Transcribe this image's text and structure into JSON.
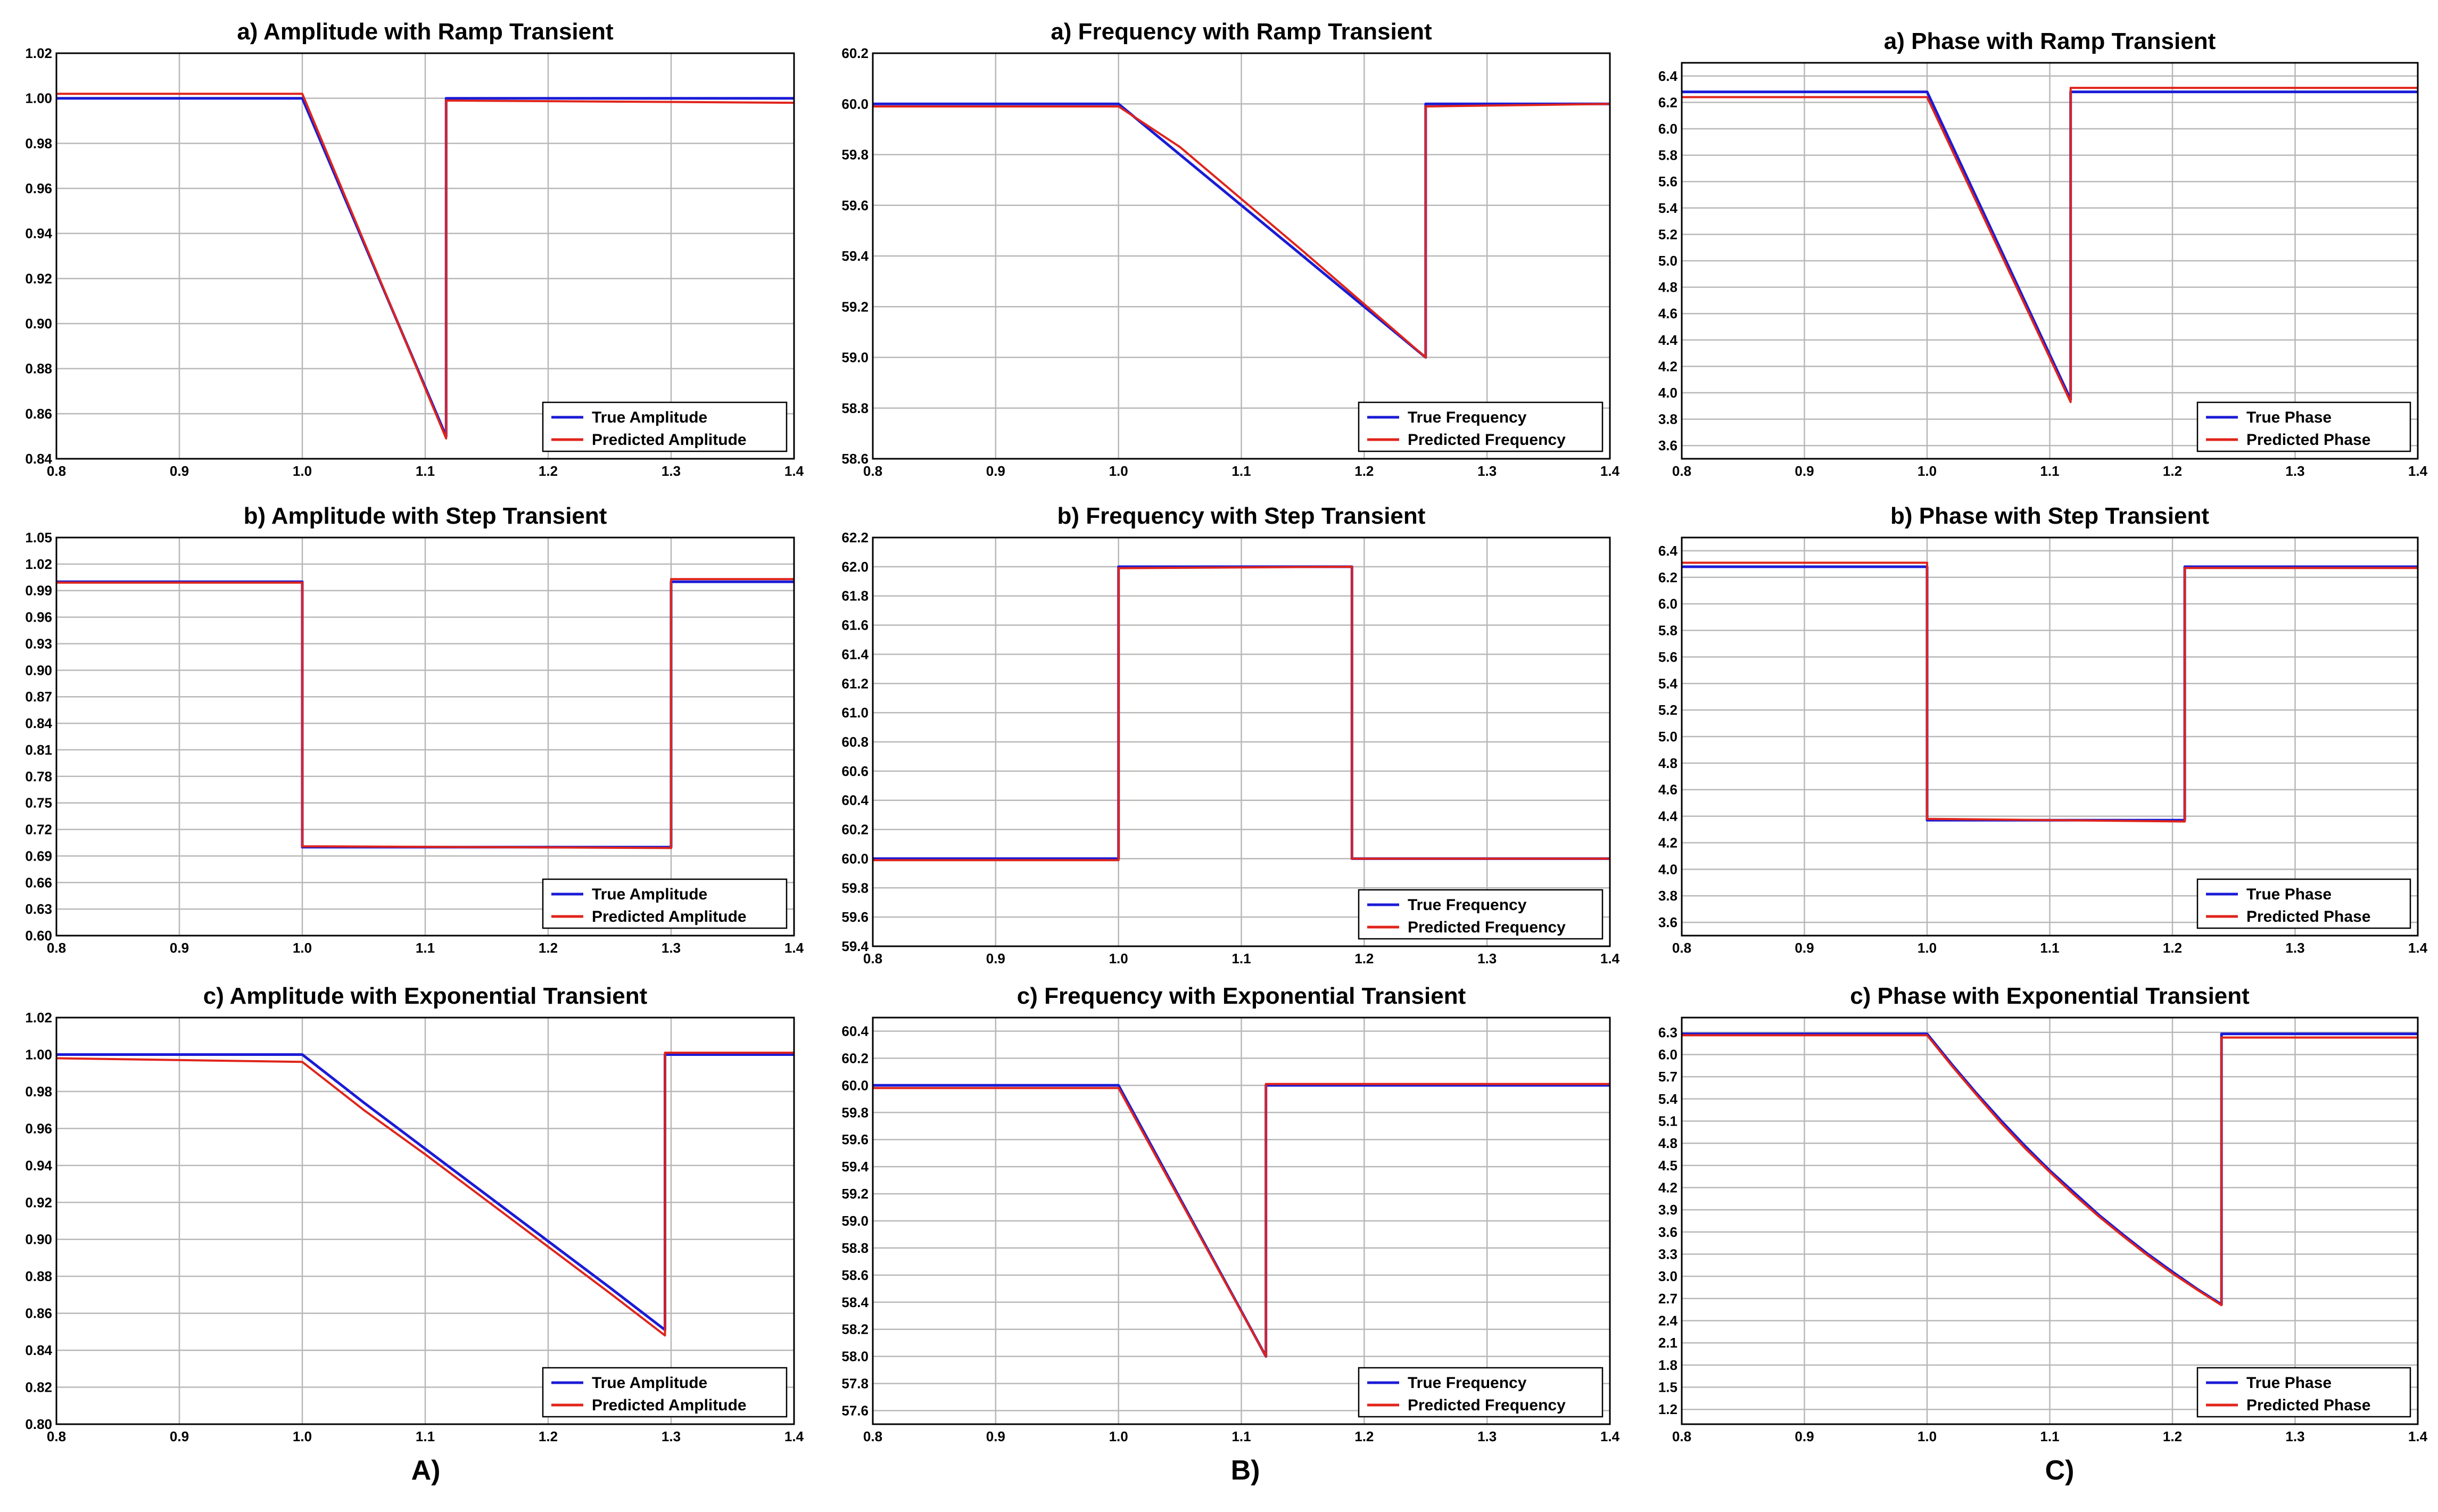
{
  "column_labels": [
    "A)",
    "B)",
    "C)"
  ],
  "colors": {
    "true": "#1b1bd6",
    "predicted": "#e0241b"
  },
  "chart_data": [
    {
      "type": "line",
      "title": "a) Amplitude with Ramp Transient",
      "xlim": [
        0.8,
        1.4
      ],
      "xticks": [
        "0.8",
        "0.9",
        "1.0",
        "1.1",
        "1.2",
        "1.3",
        "1.4"
      ],
      "ylim": [
        0.84,
        1.02
      ],
      "yticks": [
        "0.84",
        "0.86",
        "0.88",
        "0.90",
        "0.92",
        "0.94",
        "0.96",
        "0.98",
        "1.00",
        "1.02"
      ],
      "legend": "bottom-right",
      "grid": true,
      "series": [
        {
          "name": "True Amplitude",
          "color": "#1b1bd6",
          "x": [
            0.8,
            1.0,
            1.117,
            1.117,
            1.4
          ],
          "y": [
            1.0,
            1.0,
            0.85,
            1.0,
            1.0
          ]
        },
        {
          "name": "Predicted Amplitude",
          "color": "#e0241b",
          "x": [
            0.8,
            1.0,
            1.117,
            1.117,
            1.4
          ],
          "y": [
            1.002,
            1.002,
            0.849,
            0.999,
            0.998
          ]
        }
      ]
    },
    {
      "type": "line",
      "title": "a) Frequency with Ramp Transient",
      "xlim": [
        0.8,
        1.4
      ],
      "xticks": [
        "0.8",
        "0.9",
        "1.0",
        "1.1",
        "1.2",
        "1.3",
        "1.4"
      ],
      "ylim": [
        58.6,
        60.2
      ],
      "yticks": [
        "58.6",
        "58.8",
        "59.0",
        "59.2",
        "59.4",
        "59.6",
        "59.8",
        "60.0",
        "60.2"
      ],
      "legend": "bottom-right",
      "grid": true,
      "series": [
        {
          "name": "True Frequency",
          "color": "#1b1bd6",
          "x": [
            0.8,
            1.0,
            1.25,
            1.25,
            1.4
          ],
          "y": [
            60.0,
            60.0,
            59.0,
            60.0,
            60.0
          ]
        },
        {
          "name": "Predicted Frequency",
          "color": "#e0241b",
          "x": [
            0.8,
            1.0,
            1.05,
            1.15,
            1.25,
            1.25,
            1.4
          ],
          "y": [
            59.99,
            59.99,
            59.83,
            59.42,
            59.0,
            59.99,
            60.0
          ]
        }
      ]
    },
    {
      "type": "line",
      "title": "a) Phase with Ramp Transient",
      "xlim": [
        0.8,
        1.4
      ],
      "xticks": [
        "0.8",
        "0.9",
        "1.0",
        "1.1",
        "1.2",
        "1.3",
        "1.4"
      ],
      "ylim": [
        3.5,
        6.5
      ],
      "yticks": [
        "3.6",
        "3.8",
        "4.0",
        "4.2",
        "4.4",
        "4.6",
        "4.8",
        "5.0",
        "5.2",
        "5.4",
        "5.6",
        "5.8",
        "6.0",
        "6.2",
        "6.4"
      ],
      "legend": "bottom-right",
      "grid": true,
      "series": [
        {
          "name": "True Phase",
          "color": "#1b1bd6",
          "x": [
            0.8,
            1.0,
            1.117,
            1.117,
            1.4
          ],
          "y": [
            6.28,
            6.28,
            3.95,
            6.28,
            6.28
          ]
        },
        {
          "name": "Predicted Phase",
          "color": "#e0241b",
          "x": [
            0.8,
            1.0,
            1.117,
            1.117,
            1.4
          ],
          "y": [
            6.24,
            6.24,
            3.93,
            6.31,
            6.31
          ]
        }
      ]
    },
    {
      "type": "line",
      "title": "b) Amplitude with Step Transient",
      "xlim": [
        0.8,
        1.4
      ],
      "xticks": [
        "0.8",
        "0.9",
        "1.0",
        "1.1",
        "1.2",
        "1.3",
        "1.4"
      ],
      "ylim": [
        0.6,
        1.05
      ],
      "yticks": [
        "0.60",
        "0.63",
        "0.66",
        "0.69",
        "0.72",
        "0.75",
        "0.78",
        "0.81",
        "0.84",
        "0.87",
        "0.90",
        "0.93",
        "0.96",
        "0.99",
        "1.02",
        "1.05"
      ],
      "legend": "bottom-right",
      "grid": true,
      "series": [
        {
          "name": "True Amplitude",
          "color": "#1b1bd6",
          "x": [
            0.8,
            1.0,
            1.0,
            1.3,
            1.3,
            1.4
          ],
          "y": [
            1.0,
            1.0,
            0.7,
            0.7,
            1.0,
            1.0
          ]
        },
        {
          "name": "Predicted Amplitude",
          "color": "#e0241b",
          "x": [
            0.8,
            1.0,
            1.0,
            1.3,
            1.3,
            1.4
          ],
          "y": [
            0.999,
            0.999,
            0.701,
            0.699,
            1.003,
            1.003
          ]
        }
      ]
    },
    {
      "type": "line",
      "title": "b) Frequency with Step Transient",
      "xlim": [
        0.8,
        1.4
      ],
      "xticks": [
        "0.8",
        "0.9",
        "1.0",
        "1.1",
        "1.2",
        "1.3",
        "1.4"
      ],
      "ylim": [
        59.4,
        62.2
      ],
      "yticks": [
        "59.4",
        "59.6",
        "59.8",
        "60.0",
        "60.2",
        "60.4",
        "60.6",
        "60.8",
        "61.0",
        "61.2",
        "61.4",
        "61.6",
        "61.8",
        "62.0",
        "62.2"
      ],
      "legend": "bottom-right",
      "grid": true,
      "series": [
        {
          "name": "True Frequency",
          "color": "#1b1bd6",
          "x": [
            0.8,
            1.0,
            1.0,
            1.19,
            1.19,
            1.4
          ],
          "y": [
            60.0,
            60.0,
            62.0,
            62.0,
            60.0,
            60.0
          ]
        },
        {
          "name": "Predicted Frequency",
          "color": "#e0241b",
          "x": [
            0.8,
            1.0,
            1.0,
            1.19,
            1.19,
            1.4
          ],
          "y": [
            59.99,
            59.99,
            61.99,
            62.0,
            60.0,
            60.0
          ]
        }
      ]
    },
    {
      "type": "line",
      "title": "b) Phase with Step Transient",
      "xlim": [
        0.8,
        1.4
      ],
      "xticks": [
        "0.8",
        "0.9",
        "1.0",
        "1.1",
        "1.2",
        "1.3",
        "1.4"
      ],
      "ylim": [
        3.5,
        6.5
      ],
      "yticks": [
        "3.6",
        "3.8",
        "4.0",
        "4.2",
        "4.4",
        "4.6",
        "4.8",
        "5.0",
        "5.2",
        "5.4",
        "5.6",
        "5.8",
        "6.0",
        "6.2",
        "6.4"
      ],
      "legend": "bottom-right",
      "grid": true,
      "series": [
        {
          "name": "True Phase",
          "color": "#1b1bd6",
          "x": [
            0.8,
            1.0,
            1.0,
            1.21,
            1.21,
            1.4
          ],
          "y": [
            6.28,
            6.28,
            4.37,
            4.37,
            6.28,
            6.28
          ]
        },
        {
          "name": "Predicted Phase",
          "color": "#e0241b",
          "x": [
            0.8,
            1.0,
            1.0,
            1.21,
            1.21,
            1.4
          ],
          "y": [
            6.31,
            6.31,
            4.38,
            4.36,
            6.27,
            6.27
          ]
        }
      ]
    },
    {
      "type": "line",
      "title": "c) Amplitude with Exponential Transient",
      "xlim": [
        0.8,
        1.4
      ],
      "xticks": [
        "0.8",
        "0.9",
        "1.0",
        "1.1",
        "1.2",
        "1.3",
        "1.4"
      ],
      "ylim": [
        0.8,
        1.02
      ],
      "yticks": [
        "0.80",
        "0.82",
        "0.84",
        "0.86",
        "0.88",
        "0.90",
        "0.92",
        "0.94",
        "0.96",
        "0.98",
        "1.00",
        "1.02"
      ],
      "legend": "bottom-right",
      "grid": true,
      "series": [
        {
          "name": "True Amplitude",
          "color": "#1b1bd6",
          "x": [
            0.8,
            1.0,
            1.05,
            1.1,
            1.15,
            1.2,
            1.25,
            1.295,
            1.295,
            1.4
          ],
          "y": [
            1.0,
            1.0,
            0.974,
            0.949,
            0.924,
            0.899,
            0.874,
            0.851,
            1.0,
            1.0
          ]
        },
        {
          "name": "Predicted Amplitude",
          "color": "#e0241b",
          "x": [
            0.8,
            1.0,
            1.05,
            1.1,
            1.15,
            1.2,
            1.25,
            1.295,
            1.295,
            1.4
          ],
          "y": [
            0.998,
            0.996,
            0.97,
            0.946,
            0.921,
            0.896,
            0.871,
            0.848,
            1.001,
            1.001
          ]
        }
      ]
    },
    {
      "type": "line",
      "title": "c) Frequency with Exponential Transient",
      "xlim": [
        0.8,
        1.4
      ],
      "xticks": [
        "0.8",
        "0.9",
        "1.0",
        "1.1",
        "1.2",
        "1.3",
        "1.4"
      ],
      "ylim": [
        57.5,
        60.5
      ],
      "yticks": [
        "57.6",
        "57.8",
        "58.0",
        "58.2",
        "58.4",
        "58.6",
        "58.8",
        "59.0",
        "59.2",
        "59.4",
        "59.6",
        "59.8",
        "60.0",
        "60.2",
        "60.4"
      ],
      "legend": "bottom-right",
      "grid": true,
      "series": [
        {
          "name": "True Frequency",
          "color": "#1b1bd6",
          "x": [
            0.8,
            1.0,
            1.12,
            1.12,
            1.4
          ],
          "y": [
            60.0,
            60.0,
            58.0,
            60.0,
            60.0
          ]
        },
        {
          "name": "Predicted Frequency",
          "color": "#e0241b",
          "x": [
            0.8,
            1.0,
            1.12,
            1.12,
            1.4
          ],
          "y": [
            59.98,
            59.98,
            58.0,
            60.01,
            60.01
          ]
        }
      ]
    },
    {
      "type": "line",
      "title": "c) Phase with Exponential Transient",
      "xlim": [
        0.8,
        1.4
      ],
      "xticks": [
        "0.8",
        "0.9",
        "1.0",
        "1.1",
        "1.2",
        "1.3",
        "1.4"
      ],
      "ylim": [
        1.0,
        6.5
      ],
      "yticks": [
        "1.2",
        "1.5",
        "1.8",
        "2.1",
        "2.4",
        "2.7",
        "3.0",
        "3.3",
        "3.6",
        "3.9",
        "4.2",
        "4.5",
        "4.8",
        "5.1",
        "5.4",
        "5.7",
        "6.0",
        "6.3"
      ],
      "legend": "bottom-right",
      "grid": true,
      "series": [
        {
          "name": "True Phase",
          "color": "#1b1bd6",
          "x": [
            0.8,
            1.0,
            1.02,
            1.04,
            1.06,
            1.08,
            1.1,
            1.12,
            1.14,
            1.16,
            1.18,
            1.2,
            1.22,
            1.24,
            1.24,
            1.4
          ],
          "y": [
            6.28,
            6.28,
            5.87,
            5.48,
            5.11,
            4.76,
            4.43,
            4.13,
            3.83,
            3.56,
            3.3,
            3.06,
            2.83,
            2.62,
            6.28,
            6.28
          ]
        },
        {
          "name": "Predicted Phase",
          "color": "#e0241b",
          "x": [
            0.8,
            1.0,
            1.02,
            1.04,
            1.06,
            1.08,
            1.1,
            1.12,
            1.14,
            1.16,
            1.18,
            1.2,
            1.22,
            1.24,
            1.24,
            1.4
          ],
          "y": [
            6.26,
            6.26,
            5.85,
            5.46,
            5.08,
            4.73,
            4.41,
            4.1,
            3.81,
            3.54,
            3.28,
            3.04,
            2.82,
            2.61,
            6.23,
            6.23
          ]
        }
      ]
    }
  ]
}
